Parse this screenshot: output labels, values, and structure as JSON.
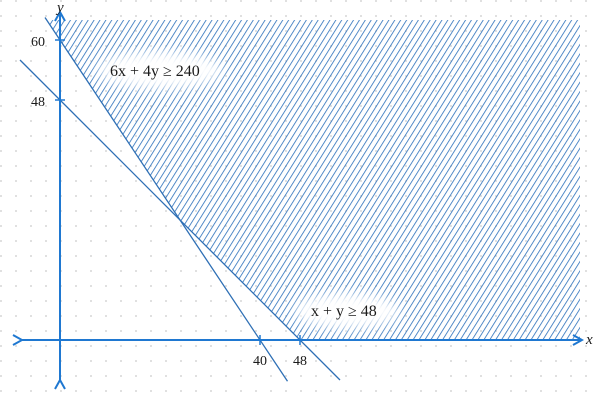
{
  "graph": {
    "x_axis_label": "x",
    "y_axis_label": "y",
    "x_ticks": [
      "40",
      "48"
    ],
    "y_ticks": [
      "60",
      "48"
    ],
    "inequalities": [
      {
        "text": "6x + 4y ≥ 240",
        "a": 6,
        "b": 4,
        "c": 240
      },
      {
        "text": "x + y ≥ 48",
        "a": 1,
        "b": 1,
        "c": 48
      }
    ],
    "colors": {
      "axis": "#1f78d1",
      "constraint_line": "#2e6fb5",
      "hatch": "#2a6fba",
      "grid_dot": "#c9c9c9"
    }
  }
}
